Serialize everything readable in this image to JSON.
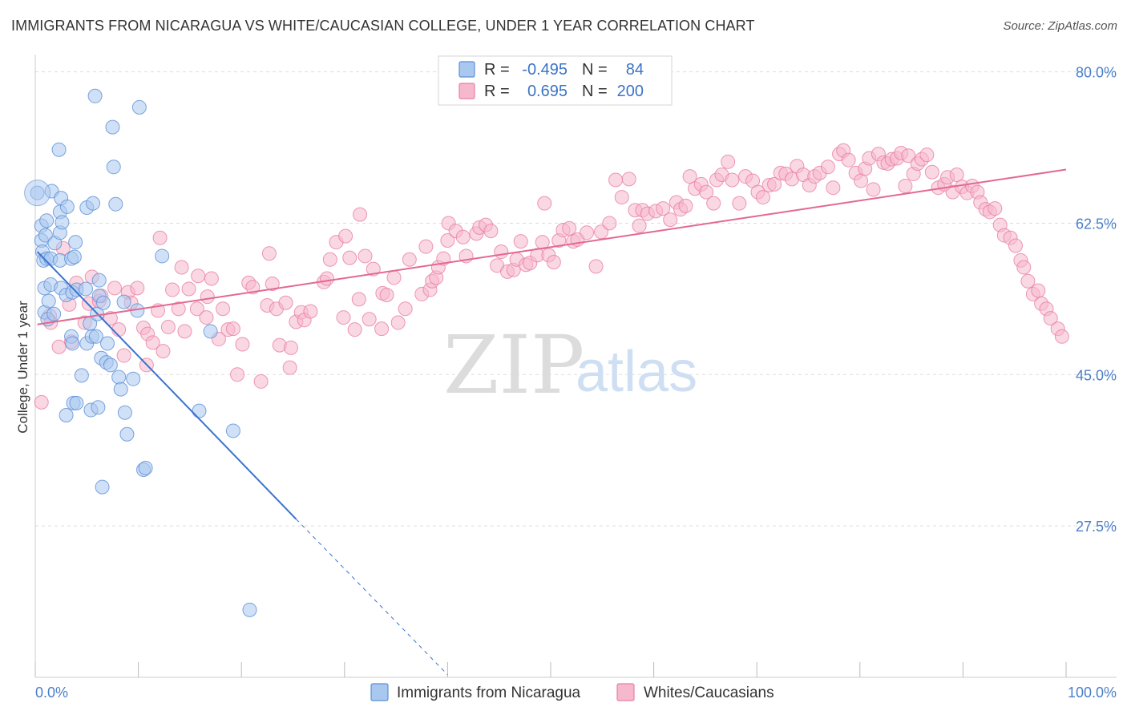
{
  "title": "IMMIGRANTS FROM NICARAGUA VS WHITE/CAUCASIAN COLLEGE, UNDER 1 YEAR CORRELATION CHART",
  "source": "Source: ZipAtlas.com",
  "watermark": {
    "zip": "ZIP",
    "atlas": "atlas"
  },
  "legend": {
    "r_label": "R =",
    "n_label": "N =",
    "rows": [
      {
        "series": "Immigrants from Nicaragua",
        "r": "-0.495",
        "n": "84",
        "color": "#a9c8f0"
      },
      {
        "series": "Whites/Caucasians",
        "r": "0.695",
        "n": "200",
        "color": "#f5b8cc"
      }
    ]
  },
  "colors": {
    "blue_fill": "#a9c8f0",
    "blue_stroke": "#5b8fd6",
    "blue_line": "#3a73cf",
    "pink_fill": "#f5b8cc",
    "pink_stroke": "#e87ea3",
    "pink_line": "#e3698f",
    "grid": "#dddddd",
    "tick_text": "#4a7fc9"
  },
  "chart_data": {
    "type": "scatter",
    "title": "IMMIGRANTS FROM NICARAGUA VS WHITE/CAUCASIAN COLLEGE, UNDER 1 YEAR CORRELATION CHART",
    "xlabel": "",
    "ylabel": "College, Under 1 year",
    "xlim": [
      0,
      100
    ],
    "ylim": [
      10,
      82
    ],
    "x_ticks": [
      "0.0%",
      "100.0%"
    ],
    "y_ticks": [
      {
        "value": 80.0,
        "label": "80.0%"
      },
      {
        "value": 62.5,
        "label": "62.5%"
      },
      {
        "value": 45.0,
        "label": "45.0%"
      },
      {
        "value": 27.5,
        "label": "27.5%"
      }
    ],
    "grid": true,
    "legend_position": "top-center",
    "series": [
      {
        "name": "Immigrants from Nicaragua",
        "r": -0.495,
        "n": 84,
        "trend": {
          "x0": 0.2,
          "y0": 59.2,
          "x1": 25.3,
          "y1": 28.3,
          "dashed_to_x": 40,
          "dashed_to_y": 10.3
        },
        "points": [
          [
            0.2,
            66.0
          ],
          [
            0.6,
            62.2
          ],
          [
            0.6,
            60.5
          ],
          [
            0.7,
            59.2
          ],
          [
            0.8,
            58.2
          ],
          [
            0.9,
            55.0
          ],
          [
            0.9,
            52.2
          ],
          [
            1.0,
            61.1
          ],
          [
            1.1,
            62.8
          ],
          [
            1.1,
            58.4
          ],
          [
            1.2,
            51.4
          ],
          [
            1.3,
            53.5
          ],
          [
            1.5,
            58.4
          ],
          [
            1.5,
            55.4
          ],
          [
            1.6,
            66.2
          ],
          [
            1.8,
            52.0
          ],
          [
            1.9,
            60.2
          ],
          [
            2.3,
            71.0
          ],
          [
            2.4,
            63.8
          ],
          [
            2.4,
            61.4
          ],
          [
            2.4,
            58.2
          ],
          [
            2.5,
            65.4
          ],
          [
            2.5,
            55.0
          ],
          [
            2.6,
            62.6
          ],
          [
            3.0,
            54.2
          ],
          [
            3.0,
            40.3
          ],
          [
            3.1,
            64.4
          ],
          [
            3.5,
            58.4
          ],
          [
            3.5,
            49.4
          ],
          [
            3.6,
            54.5
          ],
          [
            3.6,
            48.6
          ],
          [
            3.7,
            41.7
          ],
          [
            3.8,
            58.6
          ],
          [
            3.9,
            60.3
          ],
          [
            4.0,
            41.7
          ],
          [
            4.0,
            54.8
          ],
          [
            4.5,
            44.9
          ],
          [
            4.9,
            54.9
          ],
          [
            5.0,
            64.3
          ],
          [
            5.0,
            48.6
          ],
          [
            5.3,
            50.9
          ],
          [
            5.4,
            40.9
          ],
          [
            5.5,
            49.4
          ],
          [
            5.6,
            64.8
          ],
          [
            5.8,
            77.2
          ],
          [
            5.9,
            49.4
          ],
          [
            6.0,
            52.0
          ],
          [
            6.1,
            41.2
          ],
          [
            6.2,
            54.1
          ],
          [
            6.2,
            55.9
          ],
          [
            6.4,
            46.9
          ],
          [
            6.5,
            32.0
          ],
          [
            6.6,
            53.3
          ],
          [
            6.9,
            46.4
          ],
          [
            7.0,
            48.6
          ],
          [
            7.3,
            46.1
          ],
          [
            7.5,
            73.6
          ],
          [
            7.6,
            69.0
          ],
          [
            7.8,
            64.7
          ],
          [
            8.1,
            44.7
          ],
          [
            8.3,
            43.3
          ],
          [
            8.6,
            53.4
          ],
          [
            8.7,
            40.6
          ],
          [
            8.9,
            38.1
          ],
          [
            9.5,
            44.5
          ],
          [
            9.9,
            52.4
          ],
          [
            10.1,
            75.9
          ],
          [
            10.5,
            34.0
          ],
          [
            10.7,
            34.2
          ],
          [
            12.3,
            58.7
          ],
          [
            15.9,
            40.8
          ],
          [
            17.0,
            50.0
          ],
          [
            19.2,
            38.5
          ],
          [
            20.8,
            17.8
          ]
        ]
      },
      {
        "name": "Whites/Caucasians",
        "r": 0.695,
        "n": 200,
        "trend": {
          "x0": 0.2,
          "y0": 50.8,
          "x1": 100.0,
          "y1": 68.7
        },
        "points": [
          [
            0.6,
            41.8
          ],
          [
            1.4,
            51.8
          ],
          [
            1.5,
            51.0
          ],
          [
            2.3,
            48.2
          ],
          [
            2.7,
            59.6
          ],
          [
            3.3,
            53.1
          ],
          [
            3.5,
            48.8
          ],
          [
            4.0,
            55.6
          ],
          [
            4.8,
            51.0
          ],
          [
            5.2,
            53.2
          ],
          [
            5.5,
            56.3
          ],
          [
            6.2,
            53.5
          ],
          [
            6.4,
            54.1
          ],
          [
            7.3,
            51.5
          ],
          [
            7.7,
            55.0
          ],
          [
            8.1,
            50.2
          ],
          [
            8.6,
            47.2
          ],
          [
            9.0,
            54.5
          ],
          [
            9.3,
            53.3
          ],
          [
            9.9,
            55.0
          ],
          [
            10.5,
            50.4
          ],
          [
            10.8,
            46.1
          ],
          [
            10.9,
            49.7
          ],
          [
            11.4,
            48.7
          ],
          [
            11.9,
            52.4
          ],
          [
            12.1,
            60.8
          ],
          [
            12.4,
            47.7
          ],
          [
            12.9,
            50.5
          ],
          [
            13.3,
            54.8
          ],
          [
            13.9,
            52.6
          ],
          [
            14.2,
            57.4
          ],
          [
            14.5,
            50.0
          ],
          [
            14.9,
            54.9
          ],
          [
            15.7,
            52.6
          ],
          [
            15.8,
            56.4
          ],
          [
            16.6,
            51.6
          ],
          [
            16.7,
            54.0
          ],
          [
            17.1,
            56.1
          ],
          [
            17.8,
            49.1
          ],
          [
            18.2,
            52.6
          ],
          [
            18.7,
            50.2
          ],
          [
            19.2,
            50.3
          ],
          [
            19.6,
            45.0
          ],
          [
            20.1,
            48.5
          ],
          [
            20.7,
            55.6
          ],
          [
            21.1,
            55.1
          ],
          [
            21.9,
            44.2
          ],
          [
            22.5,
            53.0
          ],
          [
            22.7,
            59.0
          ],
          [
            23.0,
            55.5
          ],
          [
            23.4,
            52.6
          ],
          [
            23.7,
            48.4
          ],
          [
            24.3,
            53.3
          ],
          [
            24.7,
            45.8
          ],
          [
            24.8,
            48.1
          ],
          [
            25.3,
            51.1
          ],
          [
            25.8,
            52.2
          ],
          [
            26.1,
            51.3
          ],
          [
            26.7,
            52.3
          ],
          [
            28.0,
            55.7
          ],
          [
            28.3,
            56.1
          ],
          [
            28.6,
            58.3
          ],
          [
            29.2,
            60.3
          ],
          [
            29.9,
            51.6
          ],
          [
            30.1,
            61.0
          ],
          [
            30.5,
            58.5
          ],
          [
            31.0,
            50.2
          ],
          [
            31.4,
            53.7
          ],
          [
            31.5,
            63.5
          ],
          [
            32.0,
            58.7
          ],
          [
            32.4,
            51.4
          ],
          [
            32.8,
            57.2
          ],
          [
            33.6,
            50.3
          ],
          [
            33.7,
            54.4
          ],
          [
            34.1,
            54.2
          ],
          [
            34.8,
            56.2
          ],
          [
            35.2,
            51.0
          ],
          [
            35.9,
            52.6
          ],
          [
            36.3,
            58.3
          ],
          [
            37.5,
            54.3
          ],
          [
            37.9,
            59.8
          ],
          [
            38.3,
            54.8
          ],
          [
            38.5,
            55.8
          ],
          [
            38.9,
            56.2
          ],
          [
            39.1,
            57.4
          ],
          [
            39.6,
            58.4
          ],
          [
            40.0,
            60.5
          ],
          [
            40.1,
            62.5
          ],
          [
            40.8,
            61.6
          ],
          [
            41.5,
            60.9
          ],
          [
            41.8,
            58.7
          ],
          [
            42.8,
            61.3
          ],
          [
            43.1,
            62.0
          ],
          [
            43.7,
            62.3
          ],
          [
            44.2,
            61.6
          ],
          [
            44.8,
            57.6
          ],
          [
            45.2,
            59.2
          ],
          [
            45.8,
            56.9
          ],
          [
            46.4,
            57.1
          ],
          [
            46.7,
            58.3
          ],
          [
            47.1,
            60.4
          ],
          [
            47.6,
            57.7
          ],
          [
            48.0,
            57.9
          ],
          [
            48.7,
            58.8
          ],
          [
            49.2,
            60.3
          ],
          [
            49.4,
            64.8
          ],
          [
            49.8,
            58.8
          ],
          [
            50.3,
            58.0
          ],
          [
            50.8,
            60.5
          ],
          [
            51.2,
            61.7
          ],
          [
            51.8,
            61.9
          ],
          [
            52.2,
            60.4
          ],
          [
            52.6,
            60.6
          ],
          [
            53.5,
            61.4
          ],
          [
            54.4,
            57.5
          ],
          [
            54.9,
            61.5
          ],
          [
            55.7,
            62.5
          ],
          [
            56.3,
            67.5
          ],
          [
            56.9,
            65.5
          ],
          [
            57.6,
            67.6
          ],
          [
            58.2,
            64.0
          ],
          [
            58.6,
            62.2
          ],
          [
            58.9,
            64.0
          ],
          [
            59.4,
            63.6
          ],
          [
            60.2,
            63.9
          ],
          [
            60.9,
            64.2
          ],
          [
            61.6,
            62.9
          ],
          [
            62.2,
            64.9
          ],
          [
            62.6,
            64.1
          ],
          [
            63.1,
            64.5
          ],
          [
            63.5,
            67.9
          ],
          [
            64.0,
            66.5
          ],
          [
            64.6,
            67.0
          ],
          [
            65.1,
            66.1
          ],
          [
            65.8,
            64.8
          ],
          [
            66.1,
            67.5
          ],
          [
            66.6,
            68.1
          ],
          [
            67.2,
            69.6
          ],
          [
            67.6,
            67.5
          ],
          [
            68.3,
            64.8
          ],
          [
            68.9,
            67.9
          ],
          [
            69.6,
            67.4
          ],
          [
            70.1,
            66.1
          ],
          [
            70.6,
            65.5
          ],
          [
            71.2,
            66.9
          ],
          [
            71.7,
            67.0
          ],
          [
            72.3,
            68.3
          ],
          [
            72.8,
            68.2
          ],
          [
            73.4,
            67.6
          ],
          [
            73.9,
            69.1
          ],
          [
            74.5,
            68.1
          ],
          [
            75.1,
            66.9
          ],
          [
            75.6,
            67.9
          ],
          [
            76.1,
            68.3
          ],
          [
            76.9,
            69.0
          ],
          [
            77.4,
            66.6
          ],
          [
            78.0,
            70.5
          ],
          [
            78.4,
            70.9
          ],
          [
            78.9,
            69.8
          ],
          [
            79.6,
            68.3
          ],
          [
            80.1,
            67.4
          ],
          [
            80.5,
            68.8
          ],
          [
            80.9,
            70.0
          ],
          [
            81.3,
            66.4
          ],
          [
            81.8,
            70.5
          ],
          [
            82.3,
            69.5
          ],
          [
            82.7,
            69.4
          ],
          [
            83.1,
            69.9
          ],
          [
            83.6,
            70.0
          ],
          [
            84.0,
            70.6
          ],
          [
            84.4,
            66.8
          ],
          [
            84.7,
            70.3
          ],
          [
            85.2,
            68.2
          ],
          [
            85.6,
            69.4
          ],
          [
            86.0,
            69.9
          ],
          [
            86.5,
            70.4
          ],
          [
            87.0,
            68.4
          ],
          [
            87.6,
            66.6
          ],
          [
            88.2,
            67.0
          ],
          [
            88.5,
            67.8
          ],
          [
            89.0,
            66.1
          ],
          [
            89.4,
            68.1
          ],
          [
            89.9,
            66.7
          ],
          [
            90.4,
            66.0
          ],
          [
            90.9,
            66.8
          ],
          [
            91.4,
            66.1
          ],
          [
            91.7,
            64.9
          ],
          [
            92.2,
            64.1
          ],
          [
            92.6,
            63.8
          ],
          [
            93.1,
            64.2
          ],
          [
            93.6,
            62.3
          ],
          [
            94.0,
            61.1
          ],
          [
            94.6,
            60.8
          ],
          [
            95.1,
            59.9
          ],
          [
            95.6,
            58.2
          ],
          [
            95.9,
            57.4
          ],
          [
            96.3,
            55.8
          ],
          [
            96.8,
            54.3
          ],
          [
            97.3,
            54.7
          ],
          [
            97.6,
            53.2
          ],
          [
            98.1,
            52.6
          ],
          [
            98.5,
            51.5
          ],
          [
            99.2,
            50.3
          ],
          [
            99.6,
            49.4
          ]
        ]
      }
    ]
  }
}
